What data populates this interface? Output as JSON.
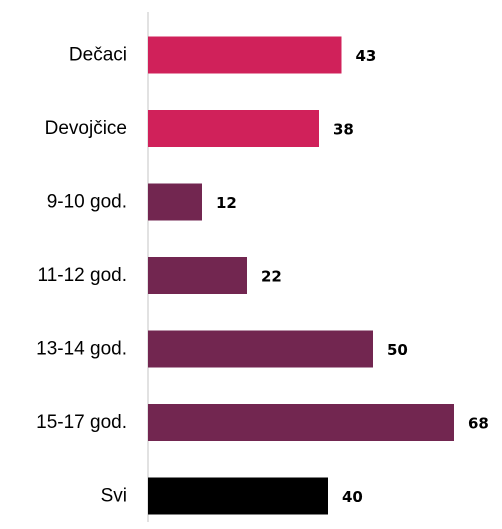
{
  "chart_data": {
    "type": "bar",
    "orientation": "horizontal",
    "categories": [
      "Dečaci",
      "Devojčice",
      "9-10 god.",
      "11-12 god.",
      "13-14 god.",
      "15-17 god.",
      "Svi"
    ],
    "values": [
      43,
      38,
      12,
      22,
      50,
      68,
      40
    ],
    "value_labels": [
      "43",
      "38",
      "12",
      "22",
      "50",
      "68",
      "40"
    ],
    "colors": [
      "#d0215a",
      "#d0215a",
      "#722650",
      "#722650",
      "#722650",
      "#722650",
      "#000000"
    ],
    "axis_color": "#d9d9d9",
    "xlim": [
      0,
      70
    ],
    "grid": false,
    "legend": "none",
    "title": "",
    "xlabel": "",
    "ylabel": ""
  }
}
